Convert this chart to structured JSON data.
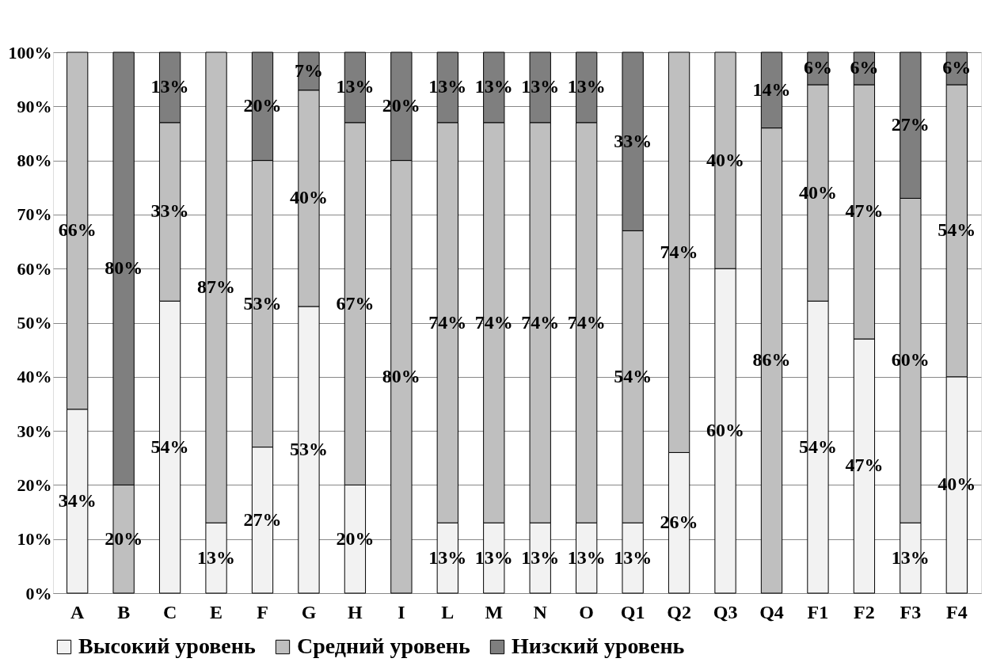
{
  "chart_data": {
    "type": "bar",
    "stacked": true,
    "categories": [
      "A",
      "B",
      "C",
      "E",
      "F",
      "G",
      "H",
      "I",
      "L",
      "M",
      "N",
      "O",
      "Q1",
      "Q2",
      "Q3",
      "Q4",
      "F1",
      "F2",
      "F3",
      "F4"
    ],
    "series": [
      {
        "name": "Высокий уровень",
        "color": "#f2f2f2",
        "values": [
          34,
          0,
          54,
          13,
          27,
          53,
          20,
          0,
          13,
          13,
          13,
          13,
          13,
          26,
          60,
          0,
          54,
          47,
          13,
          40
        ],
        "value_labels": [
          "34%",
          null,
          "54%",
          "13%",
          "27%",
          "53%",
          "20%",
          null,
          "13%",
          "13%",
          "13%",
          "13%",
          "13%",
          "26%",
          "60%",
          null,
          "54%",
          "47%",
          "13%",
          "40%"
        ]
      },
      {
        "name": "Средний уровень",
        "color": "#bfbfbf",
        "values": [
          66,
          20,
          33,
          87,
          53,
          40,
          67,
          80,
          74,
          74,
          74,
          74,
          54,
          74,
          40,
          86,
          40,
          47,
          60,
          54
        ],
        "value_labels": [
          "66%",
          "20%",
          "33%",
          "87%",
          "53%",
          "40%",
          "67%",
          "80%",
          "74%",
          "74%",
          "74%",
          "74%",
          "54%",
          "74%",
          "40%",
          "86%",
          "40%",
          "47%",
          "60%",
          "54%"
        ]
      },
      {
        "name": "Низский уровень",
        "color": "#7f7f7f",
        "values": [
          0,
          80,
          13,
          0,
          20,
          7,
          13,
          20,
          13,
          13,
          13,
          13,
          33,
          0,
          0,
          14,
          6,
          6,
          27,
          6
        ],
        "value_labels": [
          null,
          "80%",
          "13%",
          null,
          "20%",
          "7%",
          "13%",
          "20%",
          "13%",
          "13%",
          "13%",
          "13%",
          "33%",
          null,
          null,
          "14%",
          "6%",
          "6%",
          "27%",
          "6%"
        ]
      }
    ],
    "ylim": [
      0,
      100
    ],
    "yticks": [
      {
        "value": 0,
        "label": "0%"
      },
      {
        "value": 10,
        "label": "10%"
      },
      {
        "value": 20,
        "label": "20%"
      },
      {
        "value": 30,
        "label": "30%"
      },
      {
        "value": 40,
        "label": "40%"
      },
      {
        "value": 50,
        "label": "50%"
      },
      {
        "value": 60,
        "label": "60%"
      },
      {
        "value": 70,
        "label": "70%"
      },
      {
        "value": 80,
        "label": "80%"
      },
      {
        "value": 90,
        "label": "90%"
      },
      {
        "value": 100,
        "label": "100%"
      }
    ],
    "grid": "y",
    "legend": "bottom"
  }
}
